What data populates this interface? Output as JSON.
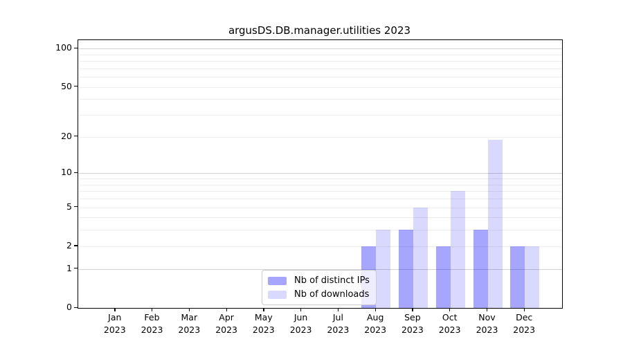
{
  "chart_data": {
    "type": "bar",
    "title": "argusDS.DB.manager.utilities 2023",
    "categories": [
      "Jan",
      "Feb",
      "Mar",
      "Apr",
      "May",
      "Jun",
      "Jul",
      "Aug",
      "Sep",
      "Oct",
      "Nov",
      "Dec"
    ],
    "x_year": "2023",
    "series": [
      {
        "name": "Nb of distinct IPs",
        "base_hex": "#0000ff",
        "alpha": 0.35,
        "values": [
          0,
          0,
          0,
          0,
          0,
          0,
          0,
          2,
          3,
          2,
          3,
          2
        ]
      },
      {
        "name": "Nb of downloads",
        "base_hex": "#0000ff",
        "alpha": 0.15,
        "values": [
          0,
          0,
          0,
          0,
          0,
          0,
          0,
          3,
          5,
          7,
          19,
          2
        ]
      }
    ],
    "y_scale": "log1p",
    "ylim": [
      0,
      117
    ],
    "y_tick_values": [
      100,
      50,
      20,
      10,
      5,
      2,
      1,
      0
    ],
    "y_tick_labels": [
      "100",
      "50",
      "20",
      "10",
      "5",
      "2",
      "1",
      "0"
    ],
    "y_gridlines_major": [
      1,
      10,
      100
    ],
    "y_gridlines_minor": [
      2,
      3,
      4,
      5,
      6,
      7,
      8,
      9,
      20,
      30,
      40,
      50,
      60,
      70,
      80,
      90
    ],
    "grid": "both",
    "legend": {
      "position": "lower center",
      "items": [
        "Nb of distinct IPs",
        "Nb of downloads"
      ]
    }
  }
}
